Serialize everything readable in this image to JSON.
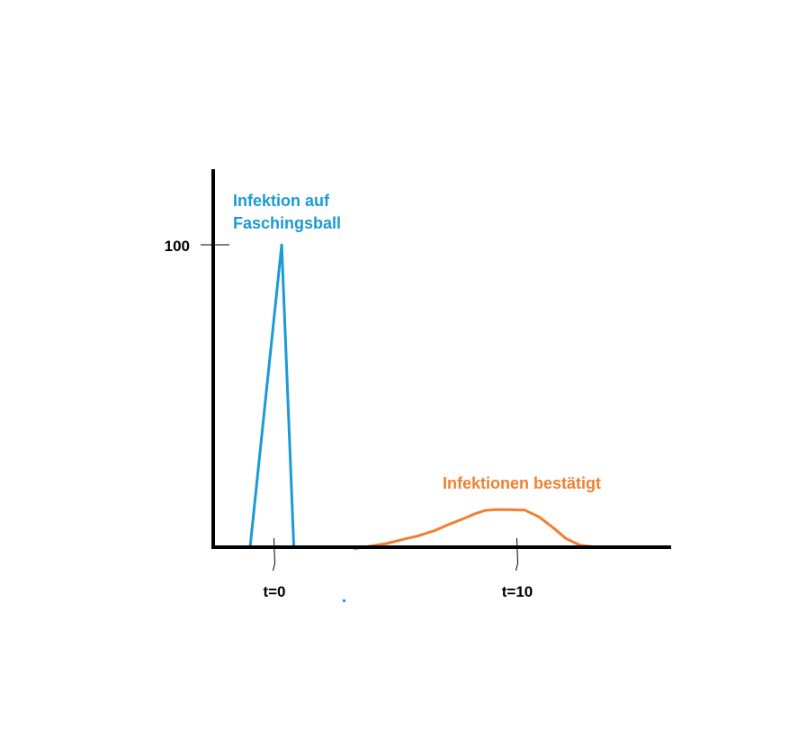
{
  "chart_data": {
    "type": "line",
    "title": "",
    "xlabel": "",
    "ylabel": "",
    "y_ticks": [
      {
        "value": 100,
        "label": "100"
      }
    ],
    "x_ticks": [
      {
        "value": 0,
        "label": "t=0"
      },
      {
        "value": 10,
        "label": "t=10"
      }
    ],
    "xlim": [
      -2.5,
      15.5
    ],
    "ylim": [
      0,
      125
    ],
    "grid": false,
    "legend": "none",
    "series": [
      {
        "name": "Infektion auf Faschingsball",
        "label_lines": [
          "Infektion auf",
          "Faschingsball"
        ],
        "color": "#1a9ad6",
        "x": [
          -1.0,
          0.3,
          0.8
        ],
        "y": [
          0,
          100,
          0
        ]
      },
      {
        "name": "Infektionen bestätigt",
        "label_lines": [
          "Infektionen bestätigt"
        ],
        "color": "#f07f30",
        "x": [
          3.3,
          3.9,
          4.6,
          5.3,
          5.9,
          6.6,
          7.2,
          7.8,
          8.3,
          8.7,
          9.1,
          9.6,
          10.3,
          10.9,
          11.5,
          12.0,
          12.6,
          13.0
        ],
        "y": [
          -0.5,
          0.3,
          1.2,
          2.6,
          3.7,
          5.5,
          7.6,
          9.5,
          11.2,
          12.2,
          12.4,
          12.4,
          12.3,
          10.0,
          6.3,
          2.9,
          0.6,
          0.3
        ]
      }
    ]
  }
}
